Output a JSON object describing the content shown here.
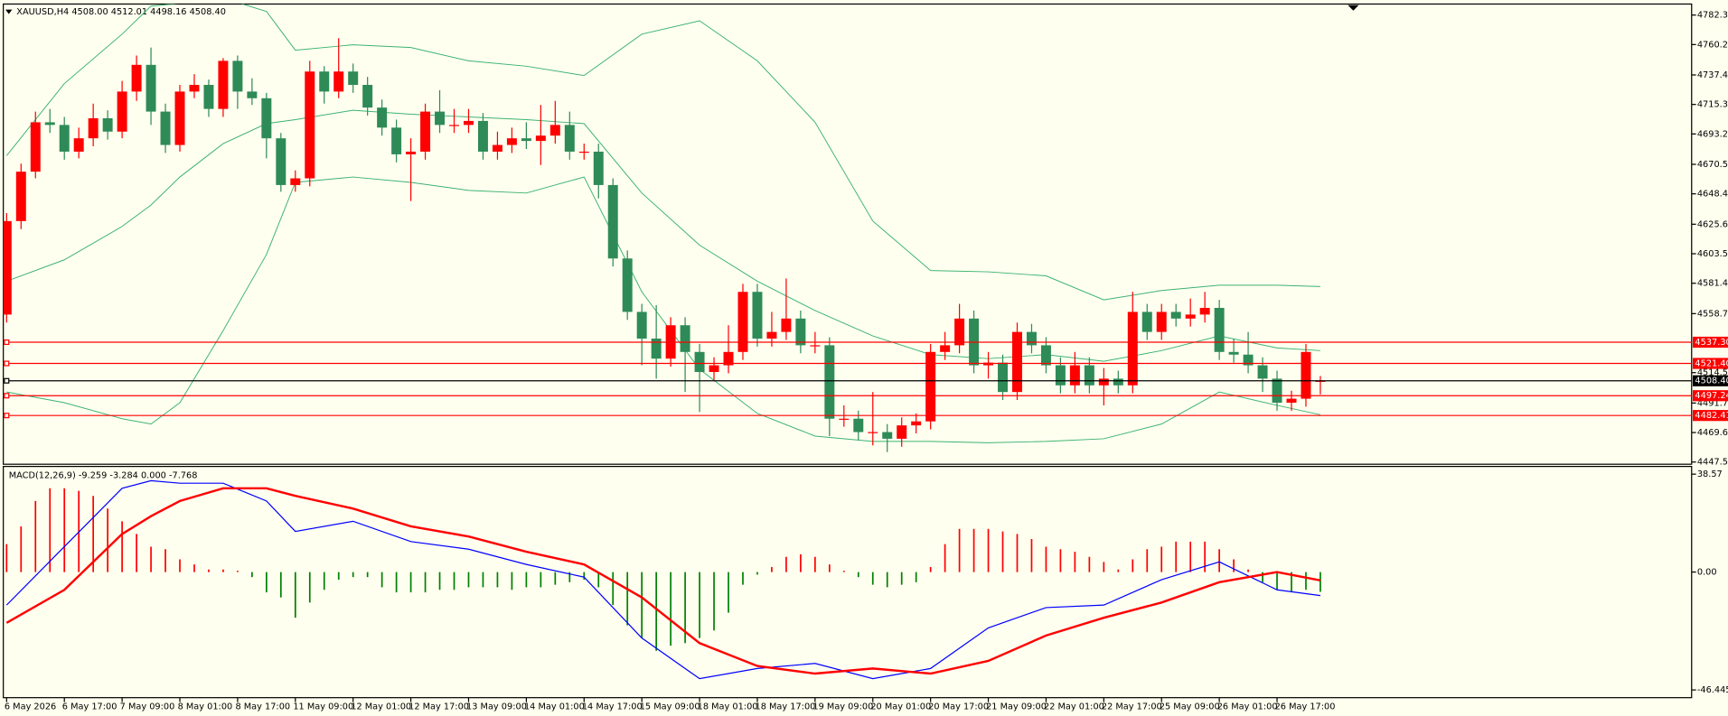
{
  "chart_data": {
    "type": "candlestick",
    "header": "XAUUSD,H4  4508.00 4512.01 4498.16 4508.40",
    "categories": [
      "6 May 2026",
      null,
      null,
      null,
      "6 May 17:00",
      null,
      null,
      null,
      "7 May 09:00",
      null,
      null,
      null,
      "8 May 01:00",
      null,
      null,
      null,
      "8 May 17:00",
      null,
      null,
      null,
      "11 May 09:00",
      null,
      null,
      null,
      "12 May 01:00",
      null,
      null,
      null,
      "12 May 17:00",
      null,
      null,
      null,
      "13 May 09:00",
      null,
      null,
      null,
      "14 May 01:00",
      null,
      null,
      null,
      "14 May 17:00",
      null,
      null,
      null,
      "15 May 09:00",
      null,
      null,
      null,
      "18 May 01:00",
      null,
      null,
      null,
      "18 May 17:00",
      null,
      null,
      null,
      "19 May 09:00",
      null,
      null,
      null,
      "20 May 01:00",
      null,
      null,
      null,
      "20 May 17:00",
      null,
      null,
      null,
      "21 May 09:00",
      null,
      null,
      null,
      "22 May 01:00",
      null,
      null,
      null,
      "22 May 17:00",
      null,
      null,
      null,
      "25 May 09:00",
      null,
      null,
      null,
      "26 May 01:00",
      null,
      null,
      null,
      "26 May 17:00",
      null,
      null,
      null
    ],
    "open": [
      4558,
      4628,
      4665,
      4702,
      4700,
      4680,
      4690,
      4705,
      4695,
      4725,
      4745,
      4710,
      4685,
      4725,
      4730,
      4712,
      4748,
      4725,
      4720,
      4690,
      4655,
      4660,
      4740,
      4725,
      4740,
      4730,
      4713,
      4698,
      4678,
      4680,
      4710,
      4700,
      4700,
      4703,
      4680,
      4685,
      4690,
      4688,
      4692,
      4700,
      4680,
      4680,
      4655,
      4600,
      4560,
      4540,
      4525,
      4550,
      4530,
      4515,
      4520,
      4530,
      4575,
      4540,
      4545,
      4555,
      4535,
      4535,
      4480,
      4480,
      4470,
      4470,
      4465,
      4475,
      4478,
      4530,
      4535,
      4555,
      4520,
      4522,
      4500,
      4545,
      4535,
      4520,
      4505,
      4520,
      4505,
      4510,
      4505,
      4560,
      4545,
      4560,
      4555,
      4558,
      4563,
      4530,
      4528,
      4520,
      4510,
      4492,
      4495,
      4508.0
    ],
    "high": [
      4634,
      4671,
      4710,
      4712,
      4706,
      4698,
      4716,
      4711,
      4733,
      4752,
      4758,
      4716,
      4730,
      4738,
      4734,
      4750,
      4752,
      4735,
      4724,
      4694,
      4666,
      4748,
      4744,
      4765,
      4746,
      4736,
      4719,
      4704,
      4690,
      4716,
      4726,
      4712,
      4712,
      4709,
      4695,
      4698,
      4702,
      4715,
      4718,
      4710,
      4686,
      4686,
      4660,
      4606,
      4566,
      4565,
      4556,
      4556,
      4536,
      4526,
      4550,
      4581,
      4581,
      4560,
      4585,
      4561,
      4545,
      4541,
      4490,
      4486,
      4500,
      4476,
      4481,
      4484,
      4536,
      4545,
      4566,
      4561,
      4530,
      4528,
      4552,
      4551,
      4541,
      4526,
      4530,
      4526,
      4518,
      4516,
      4575,
      4566,
      4566,
      4566,
      4570,
      4575,
      4569,
      4540,
      4545,
      4526,
      4516,
      4501,
      4536,
      4512.01
    ],
    "low": [
      4552,
      4622,
      4660,
      4694,
      4674,
      4675,
      4684,
      4689,
      4690,
      4718,
      4700,
      4679,
      4680,
      4720,
      4706,
      4706,
      4712,
      4715,
      4675,
      4650,
      4650,
      4654,
      4716,
      4720,
      4724,
      4707,
      4692,
      4672,
      4643,
      4674,
      4694,
      4694,
      4694,
      4674,
      4674,
      4679,
      4682,
      4670,
      4686,
      4674,
      4674,
      4645,
      4594,
      4554,
      4520,
      4510,
      4519,
      4500,
      4485,
      4509,
      4514,
      4524,
      4534,
      4534,
      4539,
      4529,
      4529,
      4467,
      4474,
      4464,
      4460,
      4455,
      4459,
      4469,
      4472,
      4524,
      4529,
      4514,
      4510,
      4494,
      4494,
      4529,
      4514,
      4499,
      4499,
      4499,
      4490,
      4499,
      4499,
      4539,
      4539,
      4549,
      4549,
      4552,
      4524,
      4522,
      4514,
      4500,
      4486,
      4486,
      4489,
      4498.16
    ],
    "close": [
      4628,
      4665,
      4702,
      4700,
      4680,
      4690,
      4705,
      4695,
      4725,
      4745,
      4710,
      4685,
      4725,
      4730,
      4712,
      4748,
      4725,
      4720,
      4690,
      4655,
      4660,
      4740,
      4725,
      4740,
      4730,
      4713,
      4698,
      4678,
      4680,
      4710,
      4700,
      4700,
      4703,
      4680,
      4685,
      4690,
      4688,
      4692,
      4700,
      4680,
      4680,
      4655,
      4600,
      4560,
      4540,
      4525,
      4550,
      4530,
      4515,
      4520,
      4530,
      4575,
      4540,
      4545,
      4555,
      4535,
      4535,
      4480,
      4480,
      4470,
      4470,
      4465,
      4475,
      4478,
      4530,
      4535,
      4555,
      4520,
      4522,
      4500,
      4545,
      4535,
      4520,
      4505,
      4520,
      4505,
      4510,
      4505,
      4560,
      4545,
      4560,
      4555,
      4558,
      4563,
      4530,
      4528,
      4520,
      4510,
      4492,
      4495,
      4530,
      4508.4
    ],
    "up_color": "#ff0000",
    "down_color": "#2e8b57",
    "ylim": [
      4447.55,
      4782.3
    ],
    "yticks": [
      {
        "value": 4782.3,
        "label": "4782.30"
      },
      {
        "value": 4760.2,
        "label": "4760.20"
      },
      4737.45,
      4715.35,
      4693.25,
      {
        "value": 4670.5,
        "label": "4670.50"
      },
      {
        "value": 4648.4,
        "label": "4648.40"
      },
      4625.65,
      4603.55,
      4581.45,
      {
        "value": 4558.7,
        "label": "4558.70"
      },
      {
        "value": 4514.5,
        "label": "4514.50"
      },
      4491.75,
      4469.65,
      4447.55
    ],
    "levels": [
      {
        "value": 4537.3,
        "label": "4537.30",
        "color": "#ff0000"
      },
      {
        "value": 4521.4,
        "label": "4521.40",
        "color": "#ff0000"
      },
      {
        "value": 4497.24,
        "label": "4497.24",
        "color": "#ff0000"
      },
      {
        "value": 4482.41,
        "label": "4482.41",
        "color": "#ff0000"
      }
    ],
    "bid": {
      "value": 4508.4,
      "label": "4508.40",
      "color": "#000000"
    },
    "bands": {
      "color": "#3cb371",
      "x": [
        0,
        4,
        8,
        10,
        12,
        15,
        18,
        20,
        24,
        28,
        32,
        36,
        40,
        44,
        48,
        52,
        56,
        60,
        64,
        68,
        72,
        76,
        80,
        84,
        88,
        91
      ],
      "upper": [
        4677,
        4731,
        4768,
        4789,
        4791,
        4795,
        4785,
        4756,
        4760,
        4758,
        4748,
        4744,
        4737,
        4768,
        4778,
        4748,
        4702,
        4628,
        4591,
        4590,
        4587,
        4569,
        4576,
        4580,
        4580,
        4579
      ],
      "middle": [
        4583,
        4599,
        4624,
        4640,
        4661,
        4686,
        4701,
        4704,
        4711,
        4708,
        4706,
        4704,
        4701,
        4649,
        4610,
        4583,
        4561,
        4542,
        4528,
        4525,
        4528,
        4523,
        4531,
        4542,
        4533,
        4531
      ],
      "lower": [
        4500,
        4492,
        4480,
        4476,
        4492,
        4546,
        4603,
        4657,
        4661,
        4657,
        4651,
        4649,
        4661,
        4575,
        4517,
        4484,
        4467,
        4463,
        4463,
        4462,
        4463,
        4465,
        4476,
        4500,
        4490,
        4483
      ]
    },
    "macd": {
      "title": "MACD(12,26,9) -9.259 -3.284 0.000 -7.768",
      "ylim": [
        -46.445,
        38.57
      ],
      "yticks": [
        38.57,
        {
          "value": 0,
          "label": "0.00"
        },
        -46.445
      ],
      "histogram": [
        11,
        18,
        28,
        33,
        33,
        32,
        30,
        25,
        20,
        15,
        10,
        9,
        5,
        3,
        1,
        1,
        0.5,
        -2,
        -8,
        -10,
        -18,
        -12,
        -7,
        -3,
        -2,
        -2,
        -6,
        -8,
        -8,
        -8,
        -7,
        -7,
        -6,
        -6,
        -6,
        -7,
        -6,
        -6,
        -5,
        -4,
        -3,
        -6,
        -13,
        -21,
        -26,
        -31,
        -29,
        -28,
        -26,
        -23,
        -16,
        -5,
        -1,
        2,
        6,
        7,
        6,
        3,
        0.5,
        -2,
        -5,
        -6,
        -5,
        -4,
        2,
        11,
        17,
        17,
        17,
        16,
        15,
        13,
        10,
        9,
        8,
        6,
        4,
        1,
        5,
        9,
        10,
        12,
        12,
        12,
        9,
        5,
        1,
        -4,
        -7,
        -8,
        -7,
        -7.768
      ],
      "hist_up_color": "#ff0000",
      "hist_down_color": "#008000",
      "x": [
        0,
        4,
        8,
        10,
        12,
        15,
        18,
        20,
        24,
        28,
        32,
        36,
        40,
        44,
        48,
        52,
        56,
        60,
        64,
        68,
        72,
        76,
        80,
        84,
        88,
        91
      ],
      "main": [
        -13,
        10,
        33,
        36,
        35,
        35,
        28,
        16,
        20,
        12,
        9,
        3,
        -2,
        -26,
        -42,
        -38,
        -36,
        -42,
        -38,
        -22,
        -14,
        -13,
        -3,
        4,
        -7,
        -9.259
      ],
      "signal": [
        -20,
        -7,
        15,
        22,
        28,
        33,
        33,
        30,
        25,
        18,
        14,
        8,
        3,
        -10,
        -28,
        -37,
        -40,
        -38,
        -40,
        -35,
        -25,
        -18,
        -12,
        -4,
        0,
        -3.284
      ],
      "main_color": "#0000ff",
      "signal_color": "#ff0000"
    }
  }
}
